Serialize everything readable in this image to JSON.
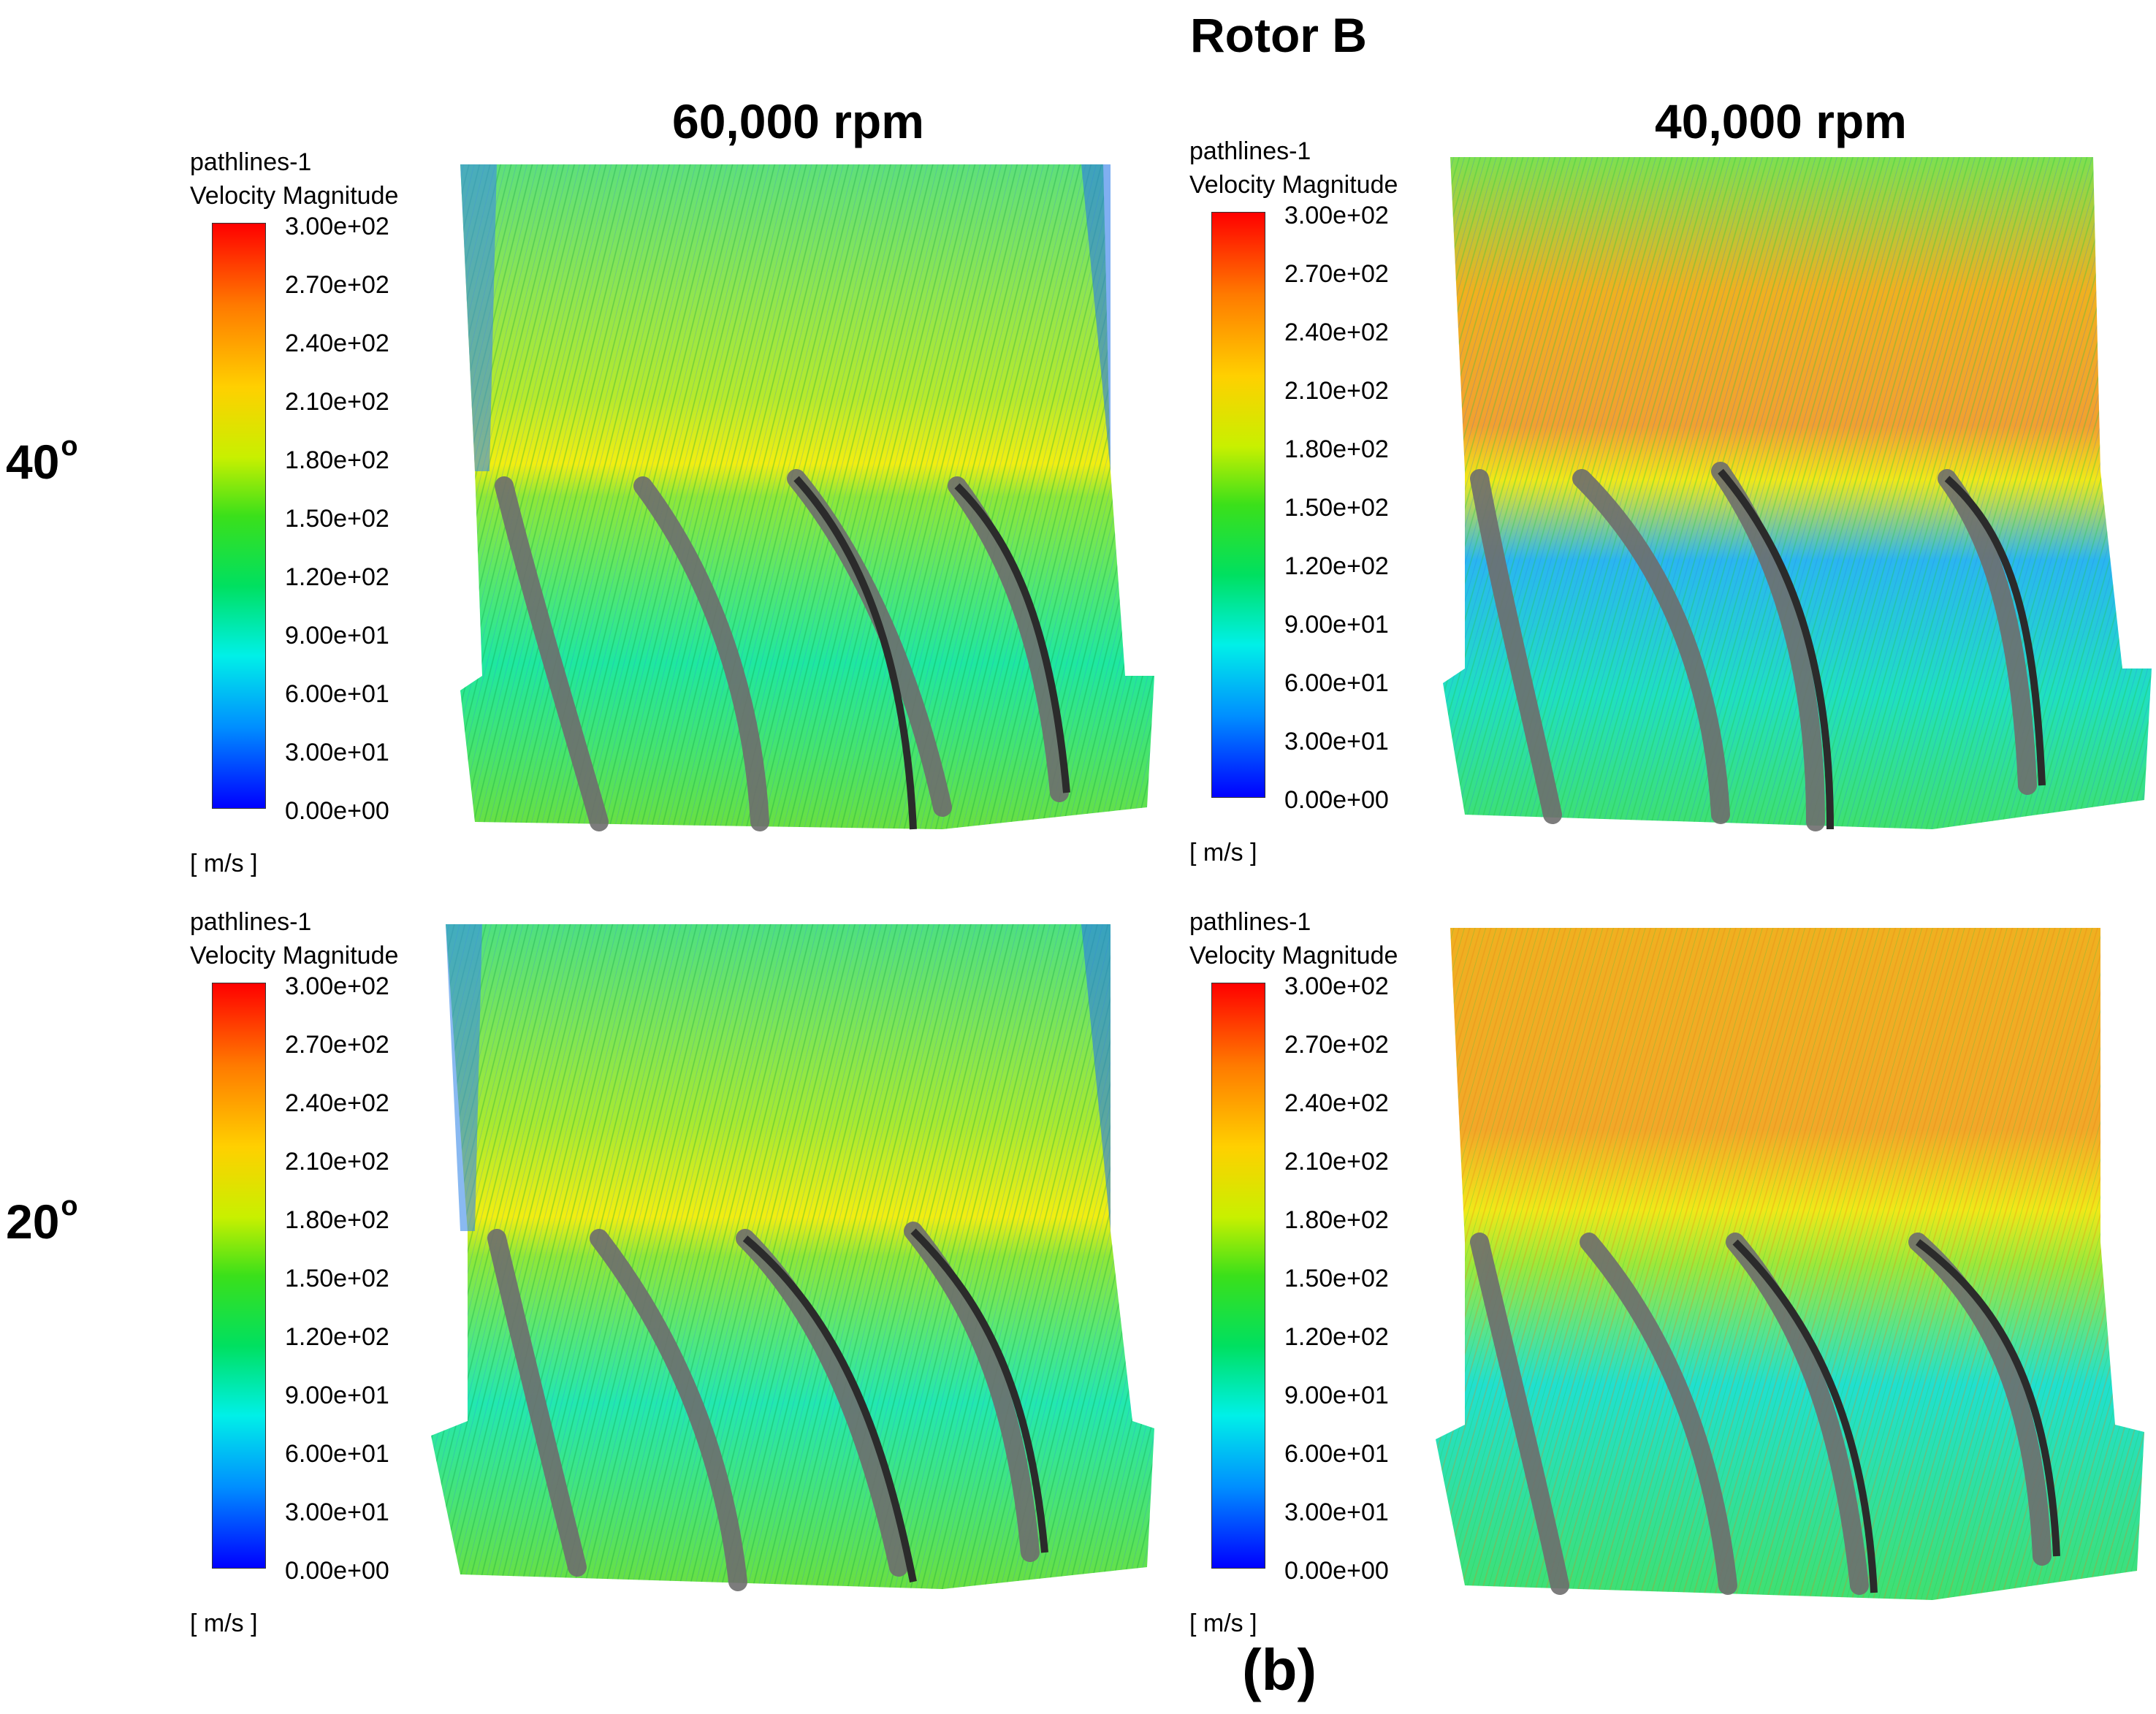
{
  "figure_title": "Rotor B",
  "column_headers": [
    "60,000 rpm",
    "40,000 rpm"
  ],
  "row_headers": [
    {
      "value": "40",
      "suffix": "o"
    },
    {
      "value": "20",
      "suffix": "o"
    }
  ],
  "caption": "(b)",
  "legend": {
    "name": "pathlines-1",
    "quantity": "Velocity Magnitude",
    "unit": "[ m/s ]",
    "ticks": [
      "3.00e+02",
      "2.70e+02",
      "2.40e+02",
      "2.10e+02",
      "1.80e+02",
      "1.50e+02",
      "1.20e+02",
      "9.00e+01",
      "6.00e+01",
      "3.00e+01",
      "0.00e+00"
    ]
  },
  "panels": [
    {
      "angle": "40o",
      "rpm": "60,000 rpm",
      "dominant": "green"
    },
    {
      "angle": "40o",
      "rpm": "40,000 rpm",
      "dominant": "orange"
    },
    {
      "angle": "20o",
      "rpm": "60,000 rpm",
      "dominant": "green"
    },
    {
      "angle": "20o",
      "rpm": "40,000 rpm",
      "dominant": "orange"
    }
  ]
}
